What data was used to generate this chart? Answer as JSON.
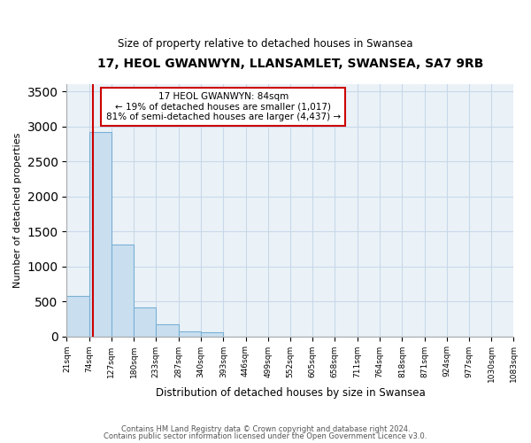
{
  "title": "17, HEOL GWANWYN, LLANSAMLET, SWANSEA, SA7 9RB",
  "subtitle": "Size of property relative to detached houses in Swansea",
  "xlabel": "Distribution of detached houses by size in Swansea",
  "ylabel": "Number of detached properties",
  "bin_labels": [
    "21sqm",
    "74sqm",
    "127sqm",
    "180sqm",
    "233sqm",
    "287sqm",
    "340sqm",
    "393sqm",
    "446sqm",
    "499sqm",
    "552sqm",
    "605sqm",
    "658sqm",
    "711sqm",
    "764sqm",
    "818sqm",
    "871sqm",
    "924sqm",
    "977sqm",
    "1030sqm",
    "1083sqm"
  ],
  "bar_heights": [
    580,
    2920,
    1310,
    415,
    175,
    65,
    55,
    0,
    0,
    0,
    0,
    0,
    0,
    0,
    0,
    0,
    0,
    0,
    0,
    0
  ],
  "bar_color": "#c9dff0",
  "bar_edge_color": "#7ab0d4",
  "ylim": [
    0,
    3600
  ],
  "yticks": [
    0,
    500,
    1000,
    1500,
    2000,
    2500,
    3000,
    3500
  ],
  "annotation_title": "17 HEOL GWANWYN: 84sqm",
  "annotation_line1": "← 19% of detached houses are smaller (1,017)",
  "annotation_line2": "81% of semi-detached houses are larger (4,437) →",
  "annotation_box_color": "#ffffff",
  "annotation_box_edge": "#cc0000",
  "red_line_color": "#cc0000",
  "footer1": "Contains HM Land Registry data © Crown copyright and database right 2024.",
  "footer2": "Contains public sector information licensed under the Open Government Licence v3.0.",
  "background_color": "#ffffff",
  "grid_color": "#c8d8e8",
  "bin_edges": [
    21,
    74,
    127,
    180,
    233,
    287,
    340,
    393,
    446,
    499,
    552,
    605,
    658,
    711,
    764,
    818,
    871,
    924,
    977,
    1030,
    1083
  ],
  "property_size": 84
}
